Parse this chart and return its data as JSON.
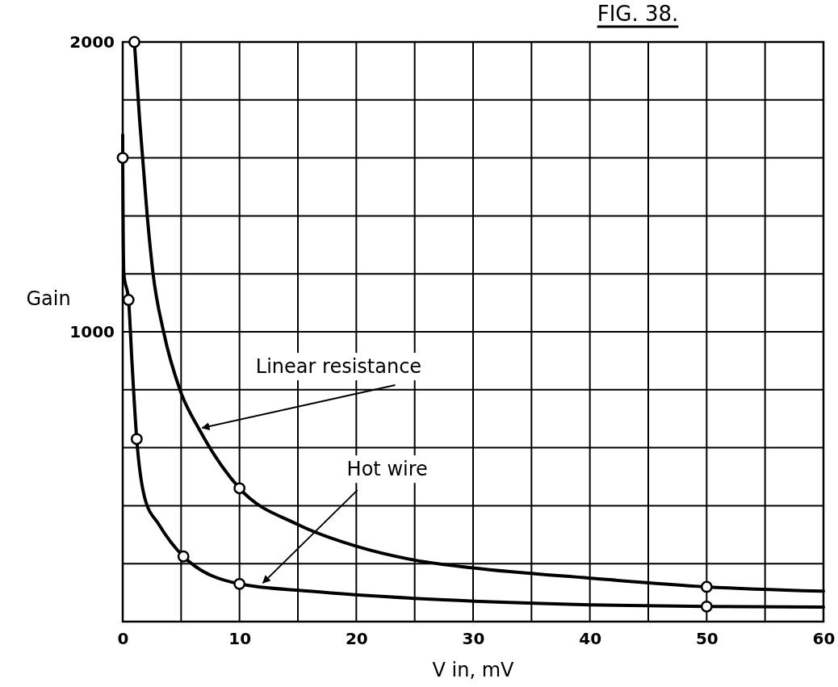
{
  "chart_data": {
    "type": "line",
    "title": "FIG. 38.",
    "xlabel": "V in, mV",
    "ylabel": "Gain",
    "xlim": [
      0,
      60
    ],
    "ylim": [
      0,
      2000
    ],
    "xticks": [
      0,
      {
        "value": 5,
        "label": null
      },
      10,
      {
        "value": 15,
        "label": null
      },
      20,
      {
        "value": 25,
        "label": null
      },
      30,
      {
        "value": 35,
        "label": null
      },
      40,
      {
        "value": 45,
        "label": null
      },
      50,
      {
        "value": 55,
        "label": null
      },
      60
    ],
    "yticks": [
      {
        "value": 0,
        "label": null
      },
      {
        "value": 200,
        "label": null
      },
      {
        "value": 400,
        "label": null
      },
      {
        "value": 600,
        "label": null
      },
      {
        "value": 800,
        "label": null
      },
      1000,
      {
        "value": 1200,
        "label": null
      },
      {
        "value": 1400,
        "label": null
      },
      {
        "value": 1600,
        "label": null
      },
      {
        "value": 1800,
        "label": null
      },
      2000
    ],
    "grid": true,
    "marker": "none",
    "line_style": "solid",
    "series": [
      {
        "type": "line",
        "color": "#000000",
        "x": [
          1,
          1.45,
          2.1,
          2.6,
          3.5,
          4.9,
          6.6,
          10,
          15,
          20,
          25,
          30,
          40,
          50,
          60
        ],
        "values": [
          2000,
          1730,
          1400,
          1200,
          1000,
          800,
          660,
          460,
          335,
          260,
          212,
          185,
          150,
          120,
          105
        ]
      },
      {
        "type": "line",
        "color": "#000000",
        "x": [
          0,
          0,
          0.1,
          0.5,
          0.8,
          1.2,
          1.9,
          3.1,
          5.2,
          10,
          16,
          27.5,
          40,
          50,
          60
        ],
        "values": [
          1680,
          1600,
          1200,
          1110,
          890,
          630,
          425,
          335,
          225,
          130,
          105,
          75,
          58,
          52,
          50
        ]
      },
      {
        "type": "scatter",
        "color": "#000000",
        "marker": "circle",
        "x": [
          1,
          10,
          50,
          0,
          0.5,
          1.2,
          5.2,
          10,
          50
        ],
        "values": [
          2000,
          460,
          120,
          1600,
          1110,
          630,
          225,
          130,
          52
        ]
      }
    ],
    "annotations": [
      {
        "text": "Linear resistance",
        "x": 6.6,
        "y": 660
      },
      {
        "text": "Hot wire",
        "x": 11.8,
        "y": 125
      }
    ]
  }
}
